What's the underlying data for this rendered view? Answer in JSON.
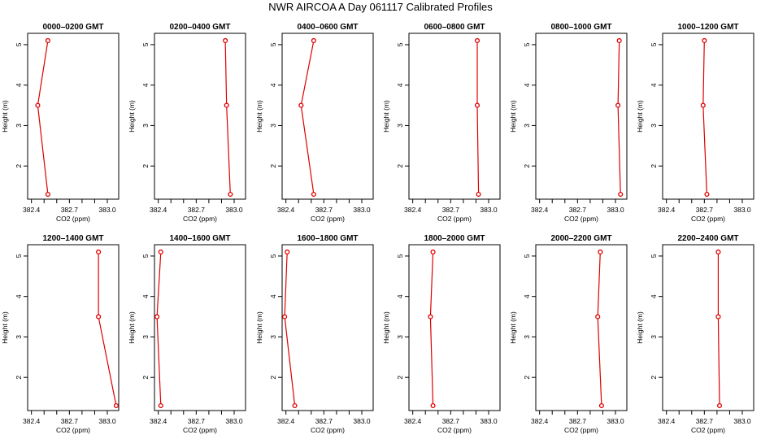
{
  "title": "NWR AIRCOA A  Day 061117  Calibrated Profiles",
  "colors": {
    "series": "#dd0000",
    "axis": "#000000",
    "background": "#ffffff"
  },
  "chart_data": [
    {
      "type": "line",
      "title": "0000–0200 GMT",
      "xlabel": "CO2 (ppm)",
      "ylabel": "Height (m)",
      "xlim": [
        382.37,
        383.09
      ],
      "ylim": [
        1.18,
        5.28
      ],
      "xticks": [
        "382.4",
        "382.7",
        "383.0"
      ],
      "xtick_values": [
        382.4,
        382.7,
        383.0
      ],
      "yticks": [
        "2",
        "3",
        "4",
        "5"
      ],
      "ytick_values": [
        2,
        3,
        4,
        5
      ],
      "grid": false,
      "points": [
        {
          "x": 382.53,
          "y": 1.3
        },
        {
          "x": 382.45,
          "y": 3.5
        },
        {
          "x": 382.53,
          "y": 5.1
        }
      ]
    },
    {
      "type": "line",
      "title": "0200–0400 GMT",
      "xlabel": "CO2 (ppm)",
      "ylabel": "Height (m)",
      "xlim": [
        382.37,
        383.09
      ],
      "ylim": [
        1.18,
        5.28
      ],
      "xticks": [
        "382.4",
        "382.7",
        "383.0"
      ],
      "xtick_values": [
        382.4,
        382.7,
        383.0
      ],
      "yticks": [
        "2",
        "3",
        "4",
        "5"
      ],
      "ytick_values": [
        2,
        3,
        4,
        5
      ],
      "grid": false,
      "points": [
        {
          "x": 382.97,
          "y": 1.3
        },
        {
          "x": 382.94,
          "y": 3.5
        },
        {
          "x": 382.93,
          "y": 5.1
        }
      ]
    },
    {
      "type": "line",
      "title": "0400–0600 GMT",
      "xlabel": "CO2 (ppm)",
      "ylabel": "Height (m)",
      "xlim": [
        382.37,
        383.09
      ],
      "ylim": [
        1.18,
        5.28
      ],
      "xticks": [
        "382.4",
        "382.7",
        "383.0"
      ],
      "xtick_values": [
        382.4,
        382.7,
        383.0
      ],
      "yticks": [
        "2",
        "3",
        "4",
        "5"
      ],
      "ytick_values": [
        2,
        3,
        4,
        5
      ],
      "grid": false,
      "points": [
        {
          "x": 382.62,
          "y": 1.3
        },
        {
          "x": 382.52,
          "y": 3.5
        },
        {
          "x": 382.62,
          "y": 5.1
        }
      ]
    },
    {
      "type": "line",
      "title": "0600–0800 GMT",
      "xlabel": "CO2 (ppm)",
      "ylabel": "Height (m)",
      "xlim": [
        382.37,
        383.09
      ],
      "ylim": [
        1.18,
        5.28
      ],
      "xticks": [
        "382.4",
        "382.7",
        "383.0"
      ],
      "xtick_values": [
        382.4,
        382.7,
        383.0
      ],
      "yticks": [
        "2",
        "3",
        "4",
        "5"
      ],
      "ytick_values": [
        2,
        3,
        4,
        5
      ],
      "grid": false,
      "points": [
        {
          "x": 382.92,
          "y": 1.3
        },
        {
          "x": 382.91,
          "y": 3.5
        },
        {
          "x": 382.91,
          "y": 5.1
        }
      ]
    },
    {
      "type": "line",
      "title": "0800–1000 GMT",
      "xlabel": "CO2 (ppm)",
      "ylabel": "Height (m)",
      "xlim": [
        382.37,
        383.09
      ],
      "ylim": [
        1.18,
        5.28
      ],
      "xticks": [
        "382.4",
        "382.7",
        "383.0"
      ],
      "xtick_values": [
        382.4,
        382.7,
        383.0
      ],
      "yticks": [
        "2",
        "3",
        "4",
        "5"
      ],
      "ytick_values": [
        2,
        3,
        4,
        5
      ],
      "grid": false,
      "points": [
        {
          "x": 383.04,
          "y": 1.3
        },
        {
          "x": 383.02,
          "y": 3.5
        },
        {
          "x": 383.03,
          "y": 5.1
        }
      ]
    },
    {
      "type": "line",
      "title": "1000–1200 GMT",
      "xlabel": "CO2 (ppm)",
      "ylabel": "Height (m)",
      "xlim": [
        382.37,
        383.09
      ],
      "ylim": [
        1.18,
        5.28
      ],
      "xticks": [
        "382.4",
        "382.7",
        "383.0"
      ],
      "xtick_values": [
        382.4,
        382.7,
        383.0
      ],
      "yticks": [
        "2",
        "3",
        "4",
        "5"
      ],
      "ytick_values": [
        2,
        3,
        4,
        5
      ],
      "grid": false,
      "points": [
        {
          "x": 382.72,
          "y": 1.3
        },
        {
          "x": 382.69,
          "y": 3.5
        },
        {
          "x": 382.7,
          "y": 5.1
        }
      ]
    },
    {
      "type": "line",
      "title": "1200–1400 GMT",
      "xlabel": "CO2 (ppm)",
      "ylabel": "Height (m)",
      "xlim": [
        382.37,
        383.09
      ],
      "ylim": [
        1.18,
        5.28
      ],
      "xticks": [
        "382.4",
        "382.7",
        "383.0"
      ],
      "xtick_values": [
        382.4,
        382.7,
        383.0
      ],
      "yticks": [
        "2",
        "3",
        "4",
        "5"
      ],
      "ytick_values": [
        2,
        3,
        4,
        5
      ],
      "grid": false,
      "points": [
        {
          "x": 383.07,
          "y": 1.3
        },
        {
          "x": 382.93,
          "y": 3.5
        },
        {
          "x": 382.93,
          "y": 5.1
        }
      ]
    },
    {
      "type": "line",
      "title": "1400–1600 GMT",
      "xlabel": "CO2 (ppm)",
      "ylabel": "Height (m)",
      "xlim": [
        382.37,
        383.09
      ],
      "ylim": [
        1.18,
        5.28
      ],
      "xticks": [
        "382.4",
        "382.7",
        "383.0"
      ],
      "xtick_values": [
        382.4,
        382.7,
        383.0
      ],
      "yticks": [
        "2",
        "3",
        "4",
        "5"
      ],
      "ytick_values": [
        2,
        3,
        4,
        5
      ],
      "grid": false,
      "points": [
        {
          "x": 382.42,
          "y": 1.3
        },
        {
          "x": 382.39,
          "y": 3.5
        },
        {
          "x": 382.42,
          "y": 5.1
        }
      ]
    },
    {
      "type": "line",
      "title": "1600–1800 GMT",
      "xlabel": "CO2 (ppm)",
      "ylabel": "Height (m)",
      "xlim": [
        382.37,
        383.09
      ],
      "ylim": [
        1.18,
        5.28
      ],
      "xticks": [
        "382.4",
        "382.7",
        "383.0"
      ],
      "xtick_values": [
        382.4,
        382.7,
        383.0
      ],
      "yticks": [
        "2",
        "3",
        "4",
        "5"
      ],
      "ytick_values": [
        2,
        3,
        4,
        5
      ],
      "grid": false,
      "points": [
        {
          "x": 382.47,
          "y": 1.3
        },
        {
          "x": 382.39,
          "y": 3.5
        },
        {
          "x": 382.41,
          "y": 5.1
        }
      ]
    },
    {
      "type": "line",
      "title": "1800–2000 GMT",
      "xlabel": "CO2 (ppm)",
      "ylabel": "Height (m)",
      "xlim": [
        382.37,
        383.09
      ],
      "ylim": [
        1.18,
        5.28
      ],
      "xticks": [
        "382.4",
        "382.7",
        "383.0"
      ],
      "xtick_values": [
        382.4,
        382.7,
        383.0
      ],
      "yticks": [
        "2",
        "3",
        "4",
        "5"
      ],
      "ytick_values": [
        2,
        3,
        4,
        5
      ],
      "grid": false,
      "points": [
        {
          "x": 382.56,
          "y": 1.3
        },
        {
          "x": 382.54,
          "y": 3.5
        },
        {
          "x": 382.56,
          "y": 5.1
        }
      ]
    },
    {
      "type": "line",
      "title": "2000–2200 GMT",
      "xlabel": "CO2 (ppm)",
      "ylabel": "Height (m)",
      "xlim": [
        382.37,
        383.09
      ],
      "ylim": [
        1.18,
        5.28
      ],
      "xticks": [
        "382.4",
        "382.7",
        "383.0"
      ],
      "xtick_values": [
        382.4,
        382.7,
        383.0
      ],
      "yticks": [
        "2",
        "3",
        "4",
        "5"
      ],
      "ytick_values": [
        2,
        3,
        4,
        5
      ],
      "grid": false,
      "points": [
        {
          "x": 382.89,
          "y": 1.3
        },
        {
          "x": 382.86,
          "y": 3.5
        },
        {
          "x": 382.88,
          "y": 5.1
        }
      ]
    },
    {
      "type": "line",
      "title": "2200–2400 GMT",
      "xlabel": "CO2 (ppm)",
      "ylabel": "Height (m)",
      "xlim": [
        382.37,
        383.09
      ],
      "ylim": [
        1.18,
        5.28
      ],
      "xticks": [
        "382.4",
        "382.7",
        "383.0"
      ],
      "xtick_values": [
        382.4,
        382.7,
        383.0
      ],
      "yticks": [
        "2",
        "3",
        "4",
        "5"
      ],
      "ytick_values": [
        2,
        3,
        4,
        5
      ],
      "grid": false,
      "points": [
        {
          "x": 382.82,
          "y": 1.3
        },
        {
          "x": 382.81,
          "y": 3.5
        },
        {
          "x": 382.81,
          "y": 5.1
        }
      ]
    }
  ]
}
